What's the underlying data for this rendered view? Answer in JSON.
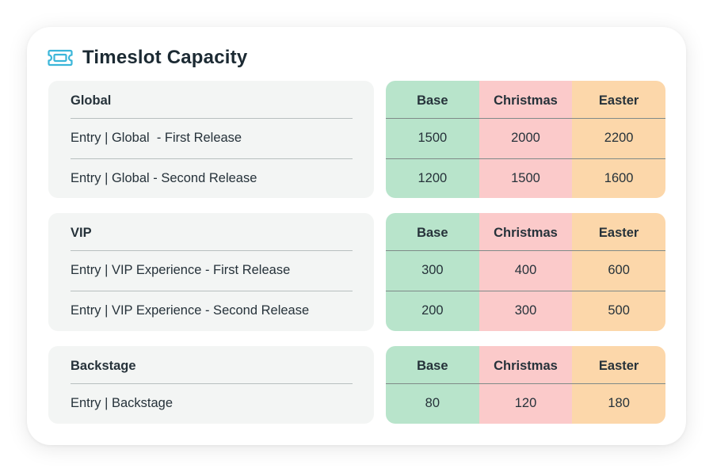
{
  "title": "Timeslot Capacity",
  "icon": "ticket-icon",
  "colors": {
    "base": "#b8e4cb",
    "christmas": "#fbcaca",
    "easter": "#fcd7aa",
    "accent": "#3bb6d9",
    "panel": "#f3f5f4"
  },
  "columns": [
    "Base",
    "Christmas",
    "Easter"
  ],
  "sections": [
    {
      "name": "Global",
      "rows": [
        {
          "label": "Entry | Global  - First Release",
          "values": [
            "1500",
            "2000",
            "2200"
          ]
        },
        {
          "label": "Entry | Global - Second Release",
          "values": [
            "1200",
            "1500",
            "1600"
          ]
        }
      ]
    },
    {
      "name": "VIP",
      "rows": [
        {
          "label": "Entry | VIP Experience - First Release",
          "values": [
            "300",
            "400",
            "600"
          ]
        },
        {
          "label": "Entry | VIP Experience - Second Release",
          "values": [
            "200",
            "300",
            "500"
          ]
        }
      ]
    },
    {
      "name": "Backstage",
      "rows": [
        {
          "label": "Entry | Backstage",
          "values": [
            "80",
            "120",
            "180"
          ]
        }
      ]
    }
  ]
}
